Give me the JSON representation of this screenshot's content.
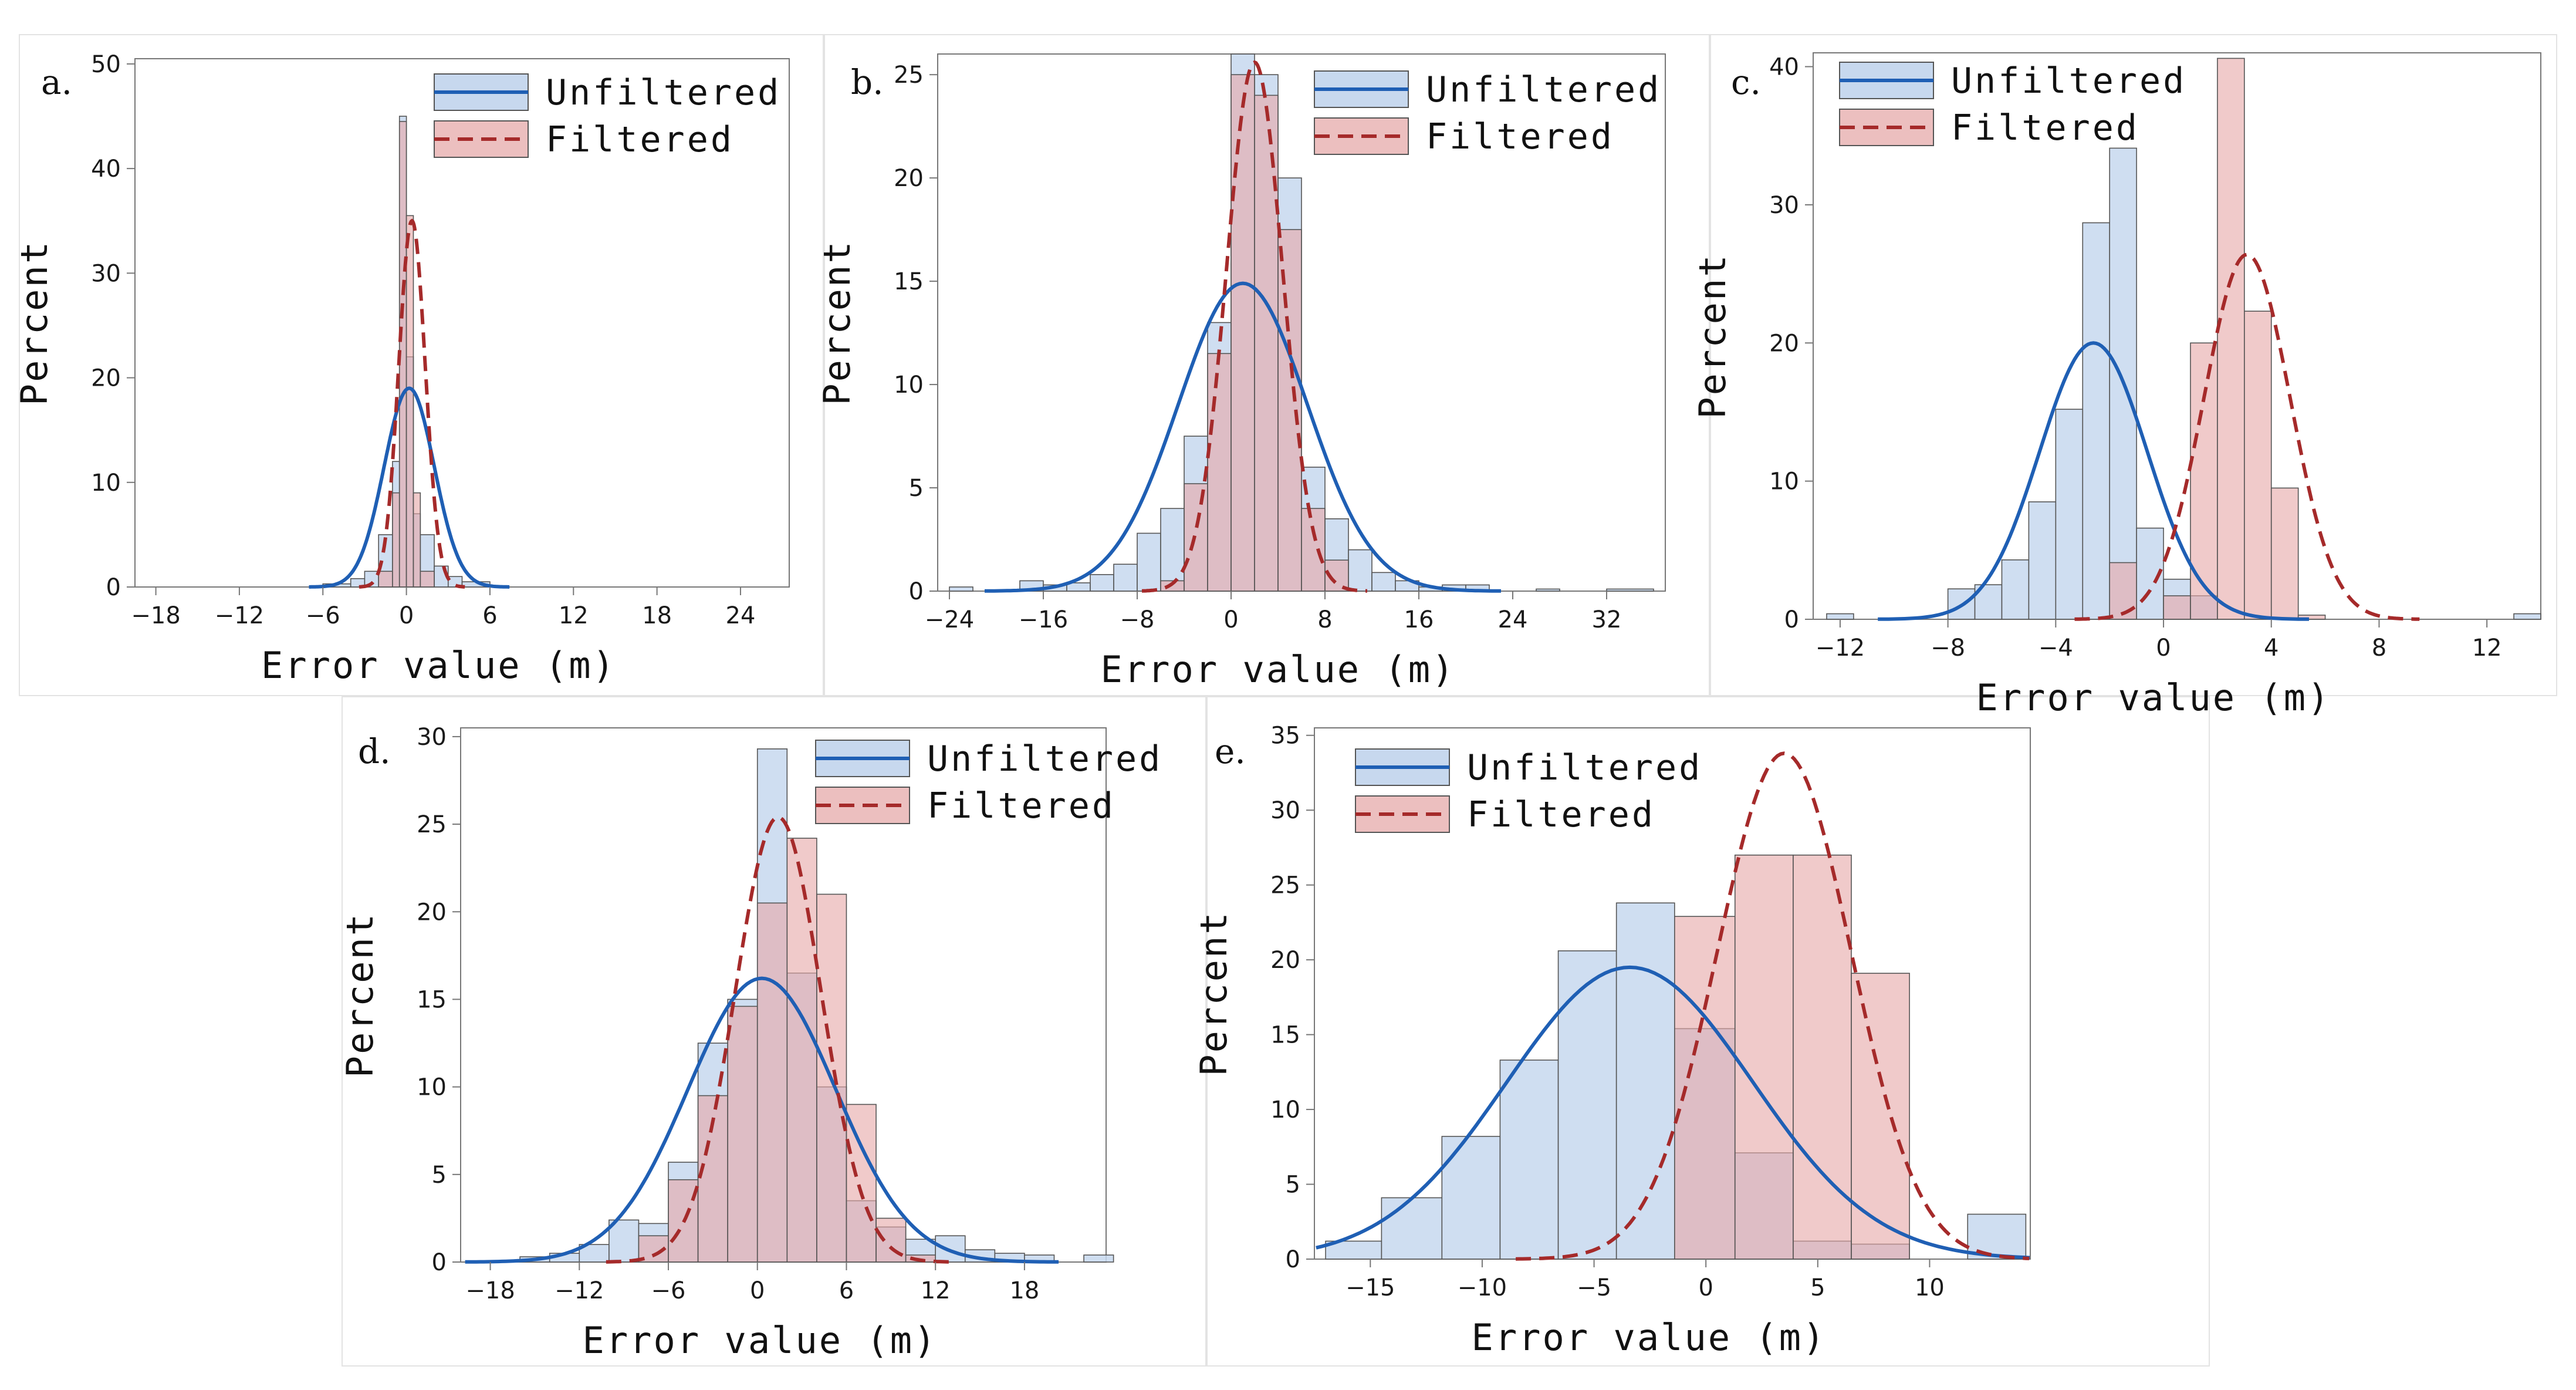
{
  "colors": {
    "unfiltered_fill": "#c7d8ee",
    "unfiltered_line": "#1f5fb4",
    "filtered_fill": "#e6a9a9",
    "filtered_line": "#a52a2a",
    "bar_stroke": "#555555",
    "axis": "#777777"
  },
  "legend": {
    "unfiltered": "Unfiltered",
    "filtered": "Filtered"
  },
  "chart_data": [
    {
      "id": "a",
      "label": "a.",
      "type": "bar",
      "xlabel": "Error value (m)",
      "ylabel": "Percent",
      "xlim": [
        -19.5,
        27.5
      ],
      "ylim": [
        0,
        50.5
      ],
      "xticks": [
        -18,
        -12,
        -6,
        0,
        6,
        12,
        18,
        24
      ],
      "xtick_labels": [
        "−18",
        "−12",
        "−6",
        "0",
        "6",
        "12",
        "18",
        "24"
      ],
      "yticks": [
        0,
        10,
        20,
        30,
        40,
        50
      ],
      "legend_position": "top-right",
      "series": [
        {
          "name": "Unfiltered",
          "bins": [
            [
              -6,
              -4,
              0.3
            ],
            [
              -4,
              -3,
              0.8
            ],
            [
              -3,
              -2,
              1.5
            ],
            [
              -2,
              -1,
              5.0
            ],
            [
              -1,
              -0.5,
              12.0
            ],
            [
              -0.5,
              0,
              45.0
            ],
            [
              0,
              0.5,
              22.0
            ],
            [
              0.5,
              1,
              7.0
            ],
            [
              1,
              2,
              5.0
            ],
            [
              2,
              3,
              2.0
            ],
            [
              3,
              4,
              1.0
            ],
            [
              4,
              6,
              0.5
            ]
          ],
          "curve": {
            "mean": 0.2,
            "sd": 1.8,
            "peak": 19
          }
        },
        {
          "name": "Filtered",
          "bins": [
            [
              -2,
              -1,
              1.5
            ],
            [
              -1,
              -0.5,
              9.0
            ],
            [
              -0.5,
              0,
              44.5
            ],
            [
              0,
              0.5,
              35.5
            ],
            [
              0.5,
              1,
              9.0
            ],
            [
              1,
              2,
              1.5
            ]
          ],
          "curve": {
            "mean": 0.4,
            "sd": 0.95,
            "peak": 35
          }
        }
      ]
    },
    {
      "id": "b",
      "label": "b.",
      "type": "bar",
      "xlabel": "Error value (m)",
      "ylabel": "Percent",
      "xlim": [
        -25,
        37
      ],
      "ylim": [
        0,
        26
      ],
      "xticks": [
        -24,
        -16,
        -8,
        0,
        8,
        16,
        24,
        32
      ],
      "xtick_labels": [
        "−24",
        "−16",
        "−8",
        "0",
        "8",
        "16",
        "24",
        "32"
      ],
      "yticks": [
        0,
        5,
        10,
        15,
        20,
        25
      ],
      "legend_position": "top-right",
      "series": [
        {
          "name": "Unfiltered",
          "bins": [
            [
              -24,
              -22,
              0.2
            ],
            [
              -18,
              -16,
              0.5
            ],
            [
              -16,
              -14,
              0.3
            ],
            [
              -14,
              -12,
              0.4
            ],
            [
              -12,
              -10,
              0.8
            ],
            [
              -10,
              -8,
              1.3
            ],
            [
              -8,
              -6,
              2.8
            ],
            [
              -6,
              -4,
              4.0
            ],
            [
              -4,
              -2,
              7.5
            ],
            [
              -2,
              0,
              13.0
            ],
            [
              0,
              2,
              26.0
            ],
            [
              2,
              4,
              25.0
            ],
            [
              4,
              6,
              20.0
            ],
            [
              6,
              8,
              6.0
            ],
            [
              8,
              10,
              3.5
            ],
            [
              10,
              12,
              2.0
            ],
            [
              12,
              14,
              0.9
            ],
            [
              14,
              16,
              0.5
            ],
            [
              16,
              18,
              0.2
            ],
            [
              18,
              20,
              0.3
            ],
            [
              20,
              22,
              0.3
            ],
            [
              26,
              28,
              0.1
            ],
            [
              32,
              36,
              0.1
            ]
          ],
          "curve": {
            "mean": 1.0,
            "sd": 5.5,
            "peak": 14.9
          }
        },
        {
          "name": "Filtered",
          "bins": [
            [
              -6,
              -4,
              0.5
            ],
            [
              -4,
              -2,
              5.2
            ],
            [
              -2,
              0,
              11.5
            ],
            [
              0,
              2,
              25.0
            ],
            [
              2,
              4,
              24.0
            ],
            [
              4,
              6,
              17.5
            ],
            [
              6,
              8,
              4.0
            ],
            [
              8,
              10,
              1.5
            ]
          ],
          "curve": {
            "mean": 2.0,
            "sd": 2.4,
            "peak": 25.6
          }
        }
      ]
    },
    {
      "id": "c",
      "label": "c.",
      "type": "bar",
      "xlabel": "Error value (m)",
      "ylabel": "Percent",
      "xlim": [
        -13,
        14
      ],
      "ylim": [
        0,
        41
      ],
      "xticks": [
        -12,
        -8,
        -4,
        0,
        4,
        8,
        12
      ],
      "xtick_labels": [
        "−12",
        "−8",
        "−4",
        "0",
        "4",
        "8",
        "12"
      ],
      "yticks": [
        0,
        10,
        20,
        30,
        40
      ],
      "legend_position": "top-left",
      "series": [
        {
          "name": "Unfiltered",
          "bins": [
            [
              -12.5,
              -11.5,
              0.4
            ],
            [
              -8,
              -7,
              2.2
            ],
            [
              -7,
              -6,
              2.5
            ],
            [
              -6,
              -5,
              4.3
            ],
            [
              -5,
              -4,
              8.5
            ],
            [
              -4,
              -3,
              15.2
            ],
            [
              -3,
              -2,
              28.7
            ],
            [
              -2,
              -1,
              34.1
            ],
            [
              -1,
              0,
              6.6
            ],
            [
              0,
              1,
              2.9
            ],
            [
              1,
              2,
              1.7
            ],
            [
              13,
              14,
              0.4
            ]
          ],
          "curve": {
            "mean": -2.6,
            "sd": 2.0,
            "peak": 20
          }
        },
        {
          "name": "Filtered",
          "bins": [
            [
              -2,
              -1,
              4.1
            ],
            [
              0,
              1,
              1.7
            ],
            [
              1,
              2,
              20.0
            ],
            [
              2,
              3,
              40.6
            ],
            [
              3,
              4,
              22.3
            ],
            [
              4,
              5,
              9.5
            ],
            [
              5,
              6,
              0.3
            ]
          ],
          "curve": {
            "mean": 3.1,
            "sd": 1.6,
            "peak": 26.4
          }
        }
      ]
    },
    {
      "id": "d",
      "label": "d.",
      "type": "bar",
      "xlabel": "Error value (m)",
      "ylabel": "Percent",
      "xlim": [
        -20,
        23.5
      ],
      "ylim": [
        0,
        30.5
      ],
      "xticks": [
        -18,
        -12,
        -6,
        0,
        6,
        12,
        18
      ],
      "xtick_labels": [
        "−18",
        "−12",
        "−6",
        "0",
        "6",
        "12",
        "18"
      ],
      "yticks": [
        0,
        5,
        10,
        15,
        20,
        25,
        30
      ],
      "legend_position": "top-right",
      "series": [
        {
          "name": "Unfiltered",
          "bins": [
            [
              -16,
              -14,
              0.3
            ],
            [
              -14,
              -12,
              0.5
            ],
            [
              -12,
              -10,
              1.0
            ],
            [
              -10,
              -8,
              2.4
            ],
            [
              -8,
              -6,
              2.2
            ],
            [
              -6,
              -4,
              5.7
            ],
            [
              -4,
              -2,
              12.5
            ],
            [
              -2,
              0,
              15.0
            ],
            [
              0,
              2,
              29.3
            ],
            [
              2,
              4,
              16.5
            ],
            [
              4,
              6,
              10.0
            ],
            [
              6,
              8,
              3.5
            ],
            [
              8,
              10,
              2.0
            ],
            [
              10,
              12,
              1.3
            ],
            [
              12,
              14,
              1.5
            ],
            [
              14,
              16,
              0.7
            ],
            [
              16,
              18,
              0.5
            ],
            [
              18,
              20,
              0.4
            ],
            [
              22,
              24,
              0.4
            ]
          ],
          "curve": {
            "mean": 0.3,
            "sd": 5.0,
            "peak": 16.2
          }
        },
        {
          "name": "Filtered",
          "bins": [
            [
              -8,
              -6,
              1.5
            ],
            [
              -6,
              -4,
              4.7
            ],
            [
              -4,
              -2,
              9.5
            ],
            [
              -2,
              0,
              14.6
            ],
            [
              0,
              2,
              20.5
            ],
            [
              2,
              4,
              24.2
            ],
            [
              4,
              6,
              21.0
            ],
            [
              6,
              8,
              9.0
            ],
            [
              8,
              10,
              2.5
            ],
            [
              10,
              12,
              0.4
            ]
          ],
          "curve": {
            "mean": 1.4,
            "sd": 2.9,
            "peak": 25.4
          }
        }
      ]
    },
    {
      "id": "e",
      "label": "e.",
      "type": "bar",
      "xlabel": "Error value (m)",
      "ylabel": "Percent",
      "xlim": [
        -17.5,
        14.5
      ],
      "ylim": [
        0,
        35.5
      ],
      "xticks": [
        -15,
        -10,
        -5,
        0,
        5,
        10
      ],
      "xtick_labels": [
        "−15",
        "−10",
        "−5",
        "0",
        "5",
        "10"
      ],
      "yticks": [
        0,
        5,
        10,
        15,
        20,
        25,
        30,
        35
      ],
      "legend_position": "top-left",
      "series": [
        {
          "name": "Unfiltered",
          "bins": [
            [
              -17,
              -14.5,
              1.2
            ],
            [
              -14.5,
              -11.8,
              4.1
            ],
            [
              -11.8,
              -9.2,
              8.2
            ],
            [
              -9.2,
              -6.6,
              13.3
            ],
            [
              -6.6,
              -4,
              20.6
            ],
            [
              -4,
              -1.4,
              23.8
            ],
            [
              -1.4,
              1.3,
              15.4
            ],
            [
              1.3,
              3.9,
              7.1
            ],
            [
              3.9,
              6.5,
              1.2
            ],
            [
              6.5,
              9.1,
              1.0
            ],
            [
              11.7,
              14.3,
              3.0
            ]
          ],
          "curve": {
            "mean": -3.4,
            "sd": 5.5,
            "peak": 19.5
          }
        },
        {
          "name": "Filtered",
          "bins": [
            [
              -1.4,
              1.3,
              22.9
            ],
            [
              1.3,
              3.9,
              27.0
            ],
            [
              3.9,
              6.5,
              27.0
            ],
            [
              6.5,
              9.1,
              19.1
            ]
          ],
          "curve": {
            "mean": 3.5,
            "sd": 3.0,
            "peak": 33.8
          }
        }
      ]
    }
  ]
}
